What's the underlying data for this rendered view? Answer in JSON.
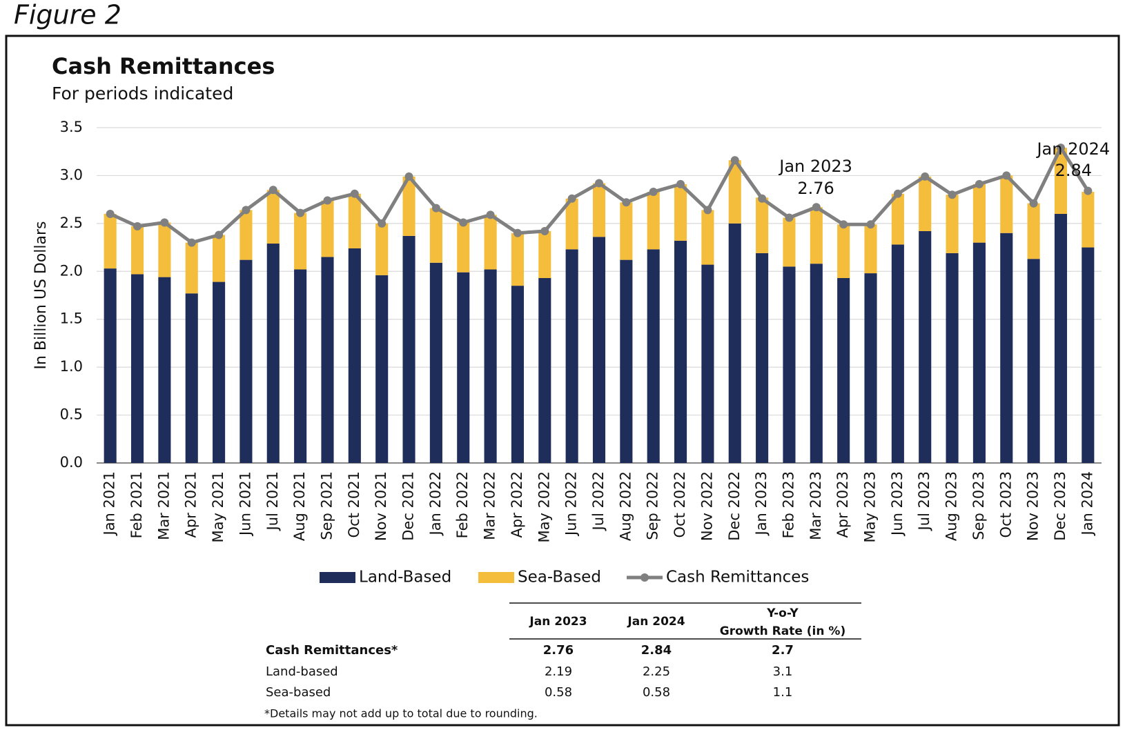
{
  "figure_label": "Figure 2",
  "chart_data": {
    "type": "bar",
    "stacked": true,
    "title": "Cash Remittances",
    "subtitle": "For periods indicated",
    "y_label": "In Billion US Dollars",
    "categories": [
      "Jan 2021",
      "Feb 2021",
      "Mar 2021",
      "Apr 2021",
      "May 2021",
      "Jun 2021",
      "Jul 2021",
      "Aug 2021",
      "Sep 2021",
      "Oct 2021",
      "Nov 2021",
      "Dec 2021",
      "Jan 2022",
      "Feb 2022",
      "Mar 2022",
      "Apr 2022",
      "May 2022",
      "Jun 2022",
      "Jul 2022",
      "Aug 2022",
      "Sep 2022",
      "Oct 2022",
      "Nov 2022",
      "Dec 2022",
      "Jan 2023",
      "Feb 2023",
      "Mar 2023",
      "Apr 2023",
      "May 2023",
      "Jun 2023",
      "Jul 2023",
      "Aug 2023",
      "Sep 2023",
      "Oct 2023",
      "Nov 2023",
      "Dec 2023",
      "Jan 2024"
    ],
    "series": [
      {
        "name": "Land-Based",
        "color": "#1f2d5a",
        "values": [
          2.03,
          1.97,
          1.94,
          1.77,
          1.89,
          2.12,
          2.29,
          2.02,
          2.15,
          2.24,
          1.96,
          2.37,
          2.09,
          1.99,
          2.02,
          1.85,
          1.93,
          2.23,
          2.36,
          2.12,
          2.23,
          2.32,
          2.07,
          2.5,
          2.19,
          2.05,
          2.08,
          1.93,
          1.98,
          2.28,
          2.42,
          2.19,
          2.3,
          2.4,
          2.13,
          2.6,
          2.25
        ]
      },
      {
        "name": "Sea-Based",
        "color": "#f5bd3c",
        "values": [
          0.57,
          0.5,
          0.57,
          0.53,
          0.49,
          0.52,
          0.56,
          0.59,
          0.59,
          0.57,
          0.54,
          0.62,
          0.57,
          0.52,
          0.57,
          0.55,
          0.49,
          0.53,
          0.56,
          0.6,
          0.6,
          0.59,
          0.57,
          0.66,
          0.58,
          0.51,
          0.59,
          0.56,
          0.51,
          0.53,
          0.57,
          0.61,
          0.61,
          0.6,
          0.58,
          0.69,
          0.58
        ]
      },
      {
        "name": "Cash Remittances",
        "type": "line",
        "color": "#808080",
        "values": [
          2.6,
          2.47,
          2.51,
          2.3,
          2.38,
          2.64,
          2.85,
          2.61,
          2.74,
          2.81,
          2.5,
          2.99,
          2.66,
          2.51,
          2.59,
          2.4,
          2.42,
          2.76,
          2.92,
          2.72,
          2.83,
          2.91,
          2.64,
          3.16,
          2.76,
          2.56,
          2.67,
          2.49,
          2.49,
          2.81,
          2.99,
          2.8,
          2.91,
          3.0,
          2.71,
          3.29,
          2.84
        ]
      }
    ],
    "ylim": [
      0,
      3.5
    ],
    "yticks": [
      {
        "value": 0,
        "label": "0.0"
      },
      0.5,
      {
        "value": 1,
        "label": "1.0"
      },
      1.5,
      {
        "value": 2,
        "label": "2.0"
      },
      2.5,
      {
        "value": 3,
        "label": "3.0"
      },
      3.5
    ],
    "grid": true,
    "legend": "bottom",
    "annotations": [
      {
        "label": "Jan 2023",
        "value": 2.76
      },
      {
        "label": "Jan 2024",
        "value": 2.84
      }
    ]
  },
  "table": {
    "headers": [
      "Jan 2023",
      "Jan 2024",
      [
        "Y-o-Y",
        "Growth Rate (in %)"
      ]
    ],
    "rows": [
      [
        "Cash Remittances*",
        "2.76",
        "2.84",
        "2.7"
      ],
      [
        "Land-based",
        "2.19",
        "2.25",
        "3.1"
      ],
      [
        "Sea-based",
        "0.58",
        "0.58",
        "1.1"
      ]
    ],
    "note": "*Details may not add up to total due to rounding."
  }
}
